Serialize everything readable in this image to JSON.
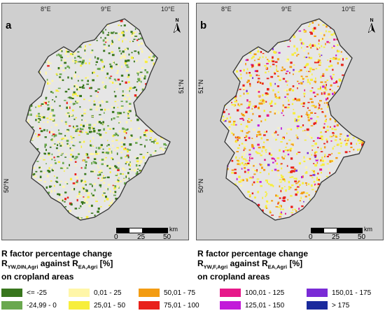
{
  "panels": [
    {
      "letter": "a",
      "lon_ticks": [
        "8°E",
        "9°E",
        "10°E"
      ],
      "lat_ticks": [
        "51°N",
        "50°N"
      ],
      "north_label": "N",
      "scale": {
        "unit": "km",
        "labels": [
          "0",
          "25",
          "50"
        ]
      },
      "caption_line1": "R factor percentage change",
      "caption_line2_main": "R",
      "caption_line2_sub": "YW,DIN,Agri",
      "caption_line2_mid": " against R",
      "caption_line2_sub2": "EA,Agri",
      "caption_line2_end": " [%]",
      "caption_line3": "on cropland areas"
    },
    {
      "letter": "b",
      "lon_ticks": [
        "8°E",
        "9°E",
        "10°E"
      ],
      "lat_ticks": [
        "51°N",
        "50°N"
      ],
      "north_label": "N",
      "scale": {
        "unit": "km",
        "labels": [
          "0",
          "25",
          "50"
        ]
      },
      "caption_line1": "R factor percentage change",
      "caption_line2_main": "R",
      "caption_line2_sub": "YW,F,Agri",
      "caption_line2_mid": " against R",
      "caption_line2_sub2": "EA,Agri",
      "caption_line2_end": " [%]",
      "caption_line3": "on cropland areas"
    }
  ],
  "legend": [
    {
      "label": "<= -25",
      "color": "#38761d"
    },
    {
      "label": "-24,99 - 0",
      "color": "#6aa84f"
    },
    {
      "label": "0,01 - 25",
      "color": "#fff6a8"
    },
    {
      "label": "25,01 - 50",
      "color": "#f7ee3c"
    },
    {
      "label": "50,01 - 75",
      "color": "#f39c12"
    },
    {
      "label": "75,01 - 100",
      "color": "#e8211b"
    },
    {
      "label": "100,01 - 125",
      "color": "#e6198a"
    },
    {
      "label": "125,01 - 150",
      "color": "#c21bd9"
    },
    {
      "label": "150,01 - 175",
      "color": "#7a2bd6"
    },
    {
      "label": "> 175",
      "color": "#1a2a9c"
    }
  ]
}
